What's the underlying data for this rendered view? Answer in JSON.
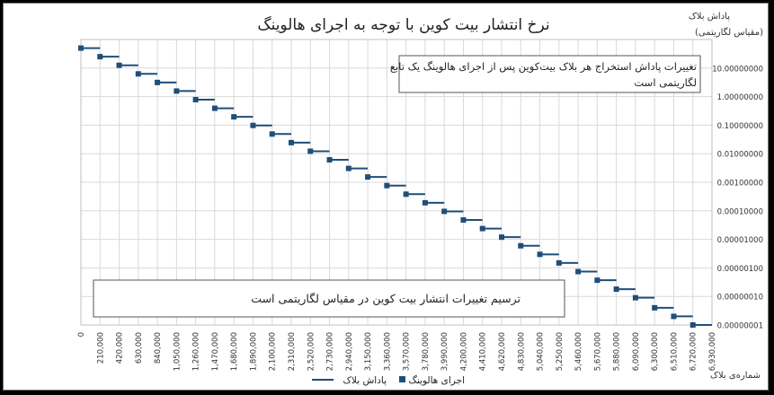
{
  "chart_data": {
    "type": "line",
    "title": "نرخ انتشار بیت کوین با توجه به اجرای هالوینگ",
    "ylabel_line1": "پاداش بلاک",
    "ylabel_line2": "(مقیاس لگاریتمی)",
    "xlabel": "شماره‌ی بلاک",
    "y_scale": "log",
    "ylim": [
      1e-08,
      100
    ],
    "xlim": [
      0,
      6930000
    ],
    "grid": true,
    "legend_position": "bottom",
    "y_ticks": [
      "10.00000000",
      "1.00000000",
      "0.10000000",
      "0.01000000",
      "0.00100000",
      "0.00010000",
      "0.00001000",
      "0.00000100",
      "0.00000010",
      "0.00000001"
    ],
    "x_ticks": [
      "0",
      "210,000",
      "420,000",
      "630,000",
      "840,000",
      "1,050,000",
      "1,260,000",
      "1,470,000",
      "1,680,000",
      "1,890,000",
      "2,100,000",
      "2,310,000",
      "2,520,000",
      "2,730,000",
      "2,940,000",
      "3,150,000",
      "3,360,000",
      "3,570,000",
      "3,780,000",
      "3,990,000",
      "4,200,000",
      "4,410,000",
      "4,620,000",
      "4,830,000",
      "5,040,000",
      "5,250,000",
      "5,460,000",
      "5,670,000",
      "5,880,000",
      "6,090,000",
      "6,300,000",
      "6,510,000",
      "6,720,000",
      "6,930,000"
    ],
    "series": [
      {
        "name": "پاداش بلاک",
        "style": "step-line",
        "color": "#1f4e79",
        "x": [
          0,
          210000,
          420000,
          630000,
          840000,
          1050000,
          1260000,
          1470000,
          1680000,
          1890000,
          2100000,
          2310000,
          2520000,
          2730000,
          2940000,
          3150000,
          3360000,
          3570000,
          3780000,
          3990000,
          4200000,
          4410000,
          4620000,
          4830000,
          5040000,
          5250000,
          5460000,
          5670000,
          5880000,
          6090000,
          6300000,
          6510000,
          6720000,
          6930000
        ],
        "values": [
          50,
          25,
          12.5,
          6.25,
          3.125,
          1.5625,
          0.78125,
          0.390625,
          0.1953125,
          0.09765625,
          0.04882812,
          0.02441406,
          0.01220703,
          0.00610351,
          0.00305175,
          0.00152587,
          0.00076293,
          0.00038146,
          0.00019073,
          9.536e-05,
          4.768e-05,
          2.384e-05,
          1.192e-05,
          5.96e-06,
          2.98e-06,
          1.49e-06,
          7.4e-07,
          3.7e-07,
          1.8e-07,
          9e-08,
          4e-08,
          2e-08,
          1e-08,
          1e-08
        ]
      },
      {
        "name": "اجرای هالوینگ",
        "style": "markers",
        "color": "#1f4e79",
        "x": [
          0,
          210000,
          420000,
          630000,
          840000,
          1050000,
          1260000,
          1470000,
          1680000,
          1890000,
          2100000,
          2310000,
          2520000,
          2730000,
          2940000,
          3150000,
          3360000,
          3570000,
          3780000,
          3990000,
          4200000,
          4410000,
          4620000,
          4830000,
          5040000,
          5250000,
          5460000,
          5670000,
          5880000,
          6090000,
          6300000,
          6510000,
          6720000
        ],
        "values": [
          50,
          25,
          12.5,
          6.25,
          3.125,
          1.5625,
          0.78125,
          0.390625,
          0.1953125,
          0.09765625,
          0.04882812,
          0.02441406,
          0.01220703,
          0.00610351,
          0.00305175,
          0.00152587,
          0.00076293,
          0.00038146,
          0.00019073,
          9.536e-05,
          4.768e-05,
          2.384e-05,
          1.192e-05,
          5.96e-06,
          2.98e-06,
          1.49e-06,
          7.4e-07,
          3.7e-07,
          1.8e-07,
          9e-08,
          4e-08,
          2e-08,
          1e-08
        ]
      }
    ],
    "annotations": [
      {
        "text_line1": "تغییرات پاداش استخراج هر بلاک بیت‌کوین پس از اجرای هالوینگ یک تابع",
        "text_line2": "لگاریتمی است"
      },
      {
        "text": "ترسیم تغییرات انتشار بیت کوین در مقیاس لگاریتمی است"
      }
    ]
  }
}
